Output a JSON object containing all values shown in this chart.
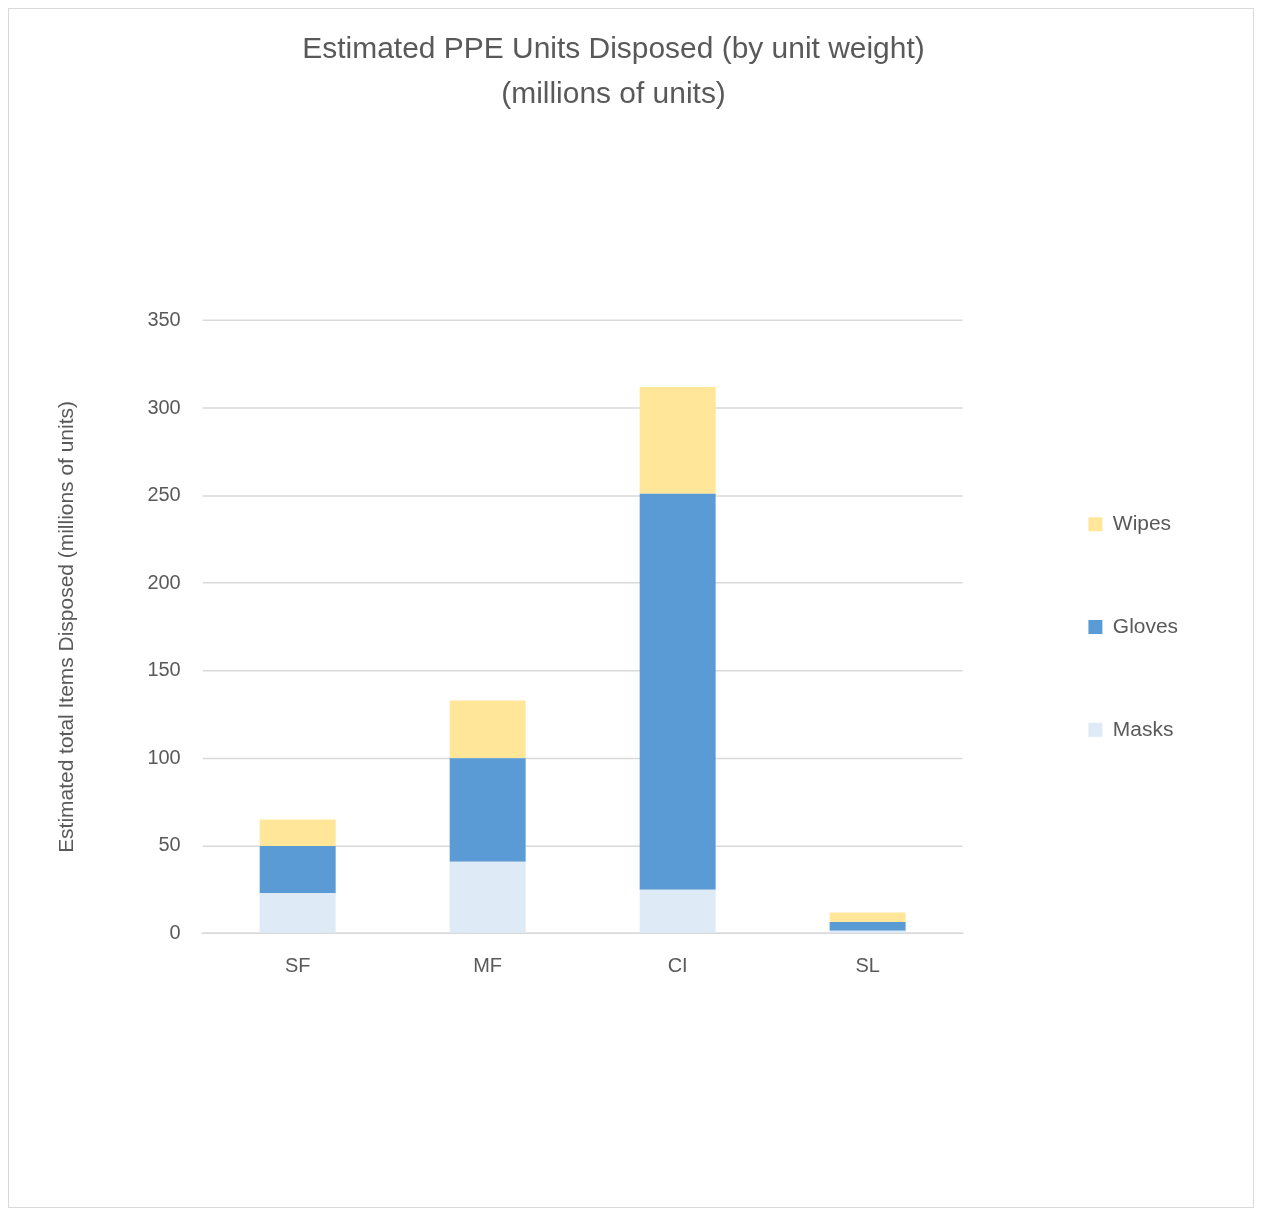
{
  "chart_data": {
    "type": "bar",
    "title": "Estimated PPE Units Disposed (by unit weight)\n(millions of units)",
    "ylabel": "Estimated total Items Disposed (millions of units)",
    "categories": [
      "SF",
      "MF",
      "CI",
      "SL"
    ],
    "stacked": true,
    "series": [
      {
        "name": "Masks",
        "color": "#deeaf6",
        "values": [
          23,
          41,
          25,
          1.5
        ]
      },
      {
        "name": "Gloves",
        "color": "#5b9bd5",
        "values": [
          27,
          59,
          226,
          5
        ]
      },
      {
        "name": "Wipes",
        "color": "#ffe699",
        "values": [
          15,
          33,
          61,
          5.5
        ]
      }
    ],
    "ylim": [
      0,
      350
    ],
    "yticks": [
      0,
      50,
      100,
      150,
      200,
      250,
      300,
      350
    ],
    "grid": "y",
    "legend": "right"
  }
}
